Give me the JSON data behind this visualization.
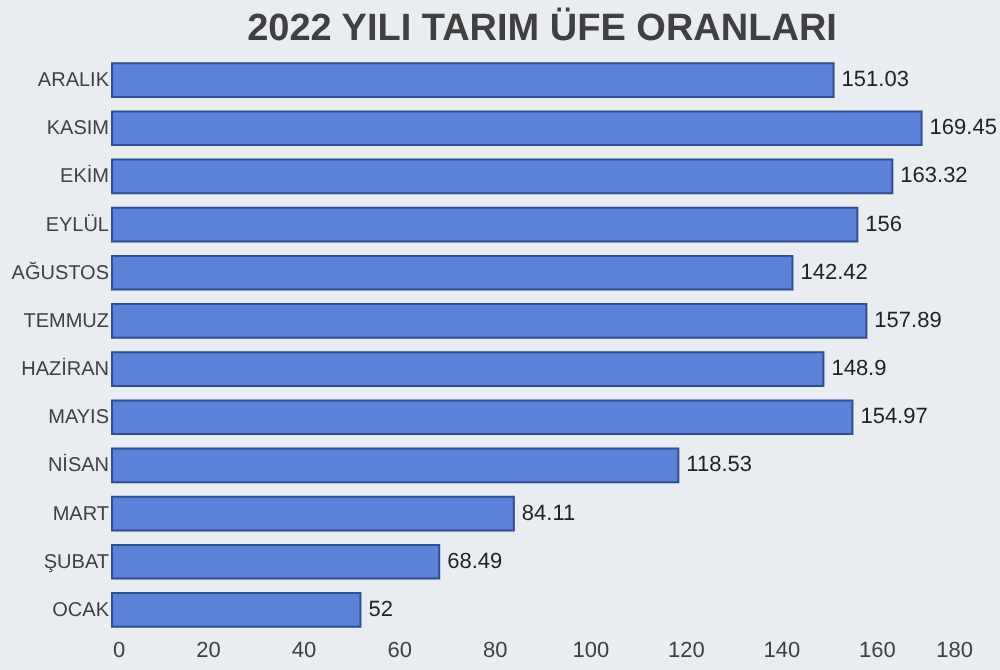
{
  "chart_data": {
    "type": "bar",
    "orientation": "horizontal",
    "title": "2022 YILI TARIM ÜFE ORANLARI",
    "categories": [
      "ARALIK",
      "KASIM",
      "EKİM",
      "EYLÜL",
      "AĞUSTOS",
      "TEMMUZ",
      "HAZİRAN",
      "MAYIS",
      "NİSAN",
      "MART",
      "ŞUBAT",
      "OCAK"
    ],
    "values": [
      151.03,
      169.45,
      163.32,
      156,
      142.42,
      157.89,
      148.9,
      154.97,
      118.53,
      84.11,
      68.49,
      52
    ],
    "color": "#5b82d9",
    "xlim": [
      0,
      180
    ],
    "xticks": [
      0,
      20,
      40,
      60,
      80,
      100,
      120,
      140,
      160,
      180
    ],
    "grid": false,
    "data_labels": true
  }
}
